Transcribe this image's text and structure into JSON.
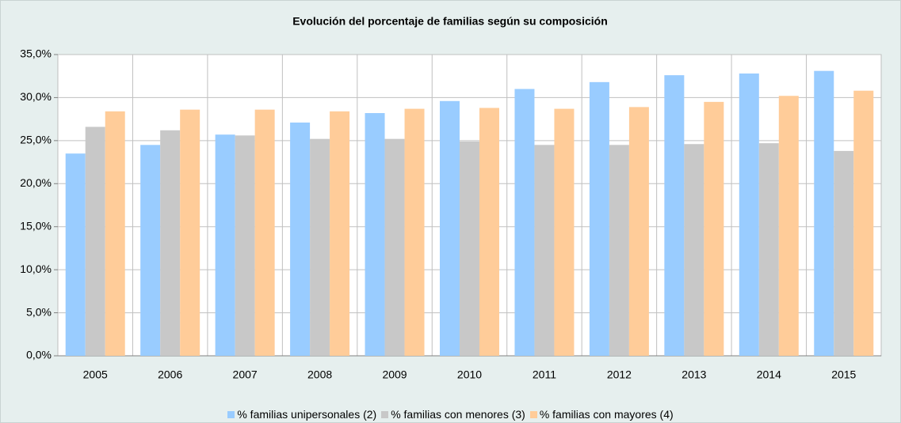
{
  "chart_data": {
    "type": "bar",
    "title": "Evolución del porcentaje de familias según su composición",
    "categories": [
      "2005",
      "2006",
      "2007",
      "2008",
      "2009",
      "2010",
      "2011",
      "2012",
      "2013",
      "2014",
      "2015"
    ],
    "series": [
      {
        "name": "% familias unipersonales (2)",
        "color": "#99ccff",
        "values": [
          23.5,
          24.5,
          25.7,
          27.1,
          28.2,
          29.6,
          31.0,
          31.8,
          32.6,
          32.8,
          33.1
        ]
      },
      {
        "name": "% familias con menores (3)",
        "color": "#c8c8c8",
        "values": [
          26.6,
          26.2,
          25.6,
          25.2,
          25.2,
          24.9,
          24.5,
          24.5,
          24.6,
          24.7,
          23.8
        ]
      },
      {
        "name": "% familias con mayores (4)",
        "color": "#ffcc99",
        "values": [
          28.4,
          28.6,
          28.6,
          28.4,
          28.7,
          28.8,
          28.7,
          28.9,
          29.5,
          30.2,
          30.8
        ]
      }
    ],
    "ylim": [
      0,
      35
    ],
    "yticks": [
      {
        "value": 0,
        "label": "0,0%"
      },
      {
        "value": 5,
        "label": "5,0%"
      },
      {
        "value": 10,
        "label": "10,0%"
      },
      {
        "value": 15,
        "label": "15,0%"
      },
      {
        "value": 20,
        "label": "20,0%"
      },
      {
        "value": 25,
        "label": "25,0%"
      },
      {
        "value": 30,
        "label": "30,0%"
      },
      {
        "value": 35,
        "label": "35,0%"
      }
    ],
    "grid": true,
    "legend": "bottom"
  }
}
